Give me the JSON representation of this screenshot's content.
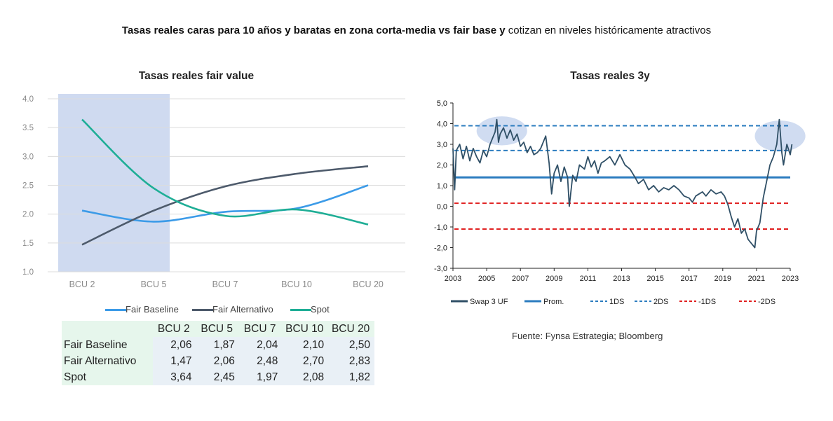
{
  "page": {
    "title_bold": "Tasas reales caras para 10 años y baratas en zona corta-media vs fair base y",
    "title_light": "cotizan en niveles históricamente atractivos",
    "source": "Fuente: Fynsa Estrategia; Bloomberg"
  },
  "chart_data": [
    {
      "type": "line",
      "title": "Tasas reales fair value",
      "categories": [
        "BCU 2",
        "BCU 5",
        "BCU 7",
        "BCU 10",
        "BCU 20"
      ],
      "ylim": [
        1.0,
        4.0
      ],
      "yticks": [
        "1.0",
        "1.5",
        "2.0",
        "2.5",
        "3.0",
        "3.5",
        "4.0"
      ],
      "grid": true,
      "highlight_region": [
        "BCU 2",
        "BCU 5"
      ],
      "legend_position": "bottom",
      "series": [
        {
          "name": "Fair Baseline",
          "color": "#3c9be8",
          "values": [
            2.06,
            1.87,
            2.04,
            2.1,
            2.5
          ]
        },
        {
          "name": "Fair Alternativo",
          "color": "#4d5a6b",
          "values": [
            1.47,
            2.06,
            2.48,
            2.7,
            2.83
          ]
        },
        {
          "name": "Spot",
          "color": "#1fae96",
          "values": [
            3.64,
            2.45,
            1.97,
            2.08,
            1.82
          ]
        }
      ],
      "table": {
        "headers": [
          "BCU 2",
          "BCU 5",
          "BCU 7",
          "BCU 10",
          "BCU 20"
        ],
        "rows": [
          {
            "label": "Fair Baseline",
            "values": [
              "2,06",
              "1,87",
              "2,04",
              "2,10",
              "2,50"
            ]
          },
          {
            "label": "Fair Alternativo",
            "values": [
              "1,47",
              "2,06",
              "2,48",
              "2,70",
              "2,83"
            ]
          },
          {
            "label": "Spot",
            "values": [
              "3,64",
              "2,45",
              "1,97",
              "2,08",
              "1,82"
            ]
          }
        ]
      }
    },
    {
      "type": "line",
      "title": "Tasas reales 3y",
      "xlim": [
        2003,
        2023
      ],
      "xticks": [
        "2003",
        "2005",
        "2007",
        "2009",
        "2011",
        "2013",
        "2015",
        "2017",
        "2019",
        "2021",
        "2023"
      ],
      "ylim": [
        -3.0,
        5.0
      ],
      "yticks": [
        "-3,0",
        "-2,0",
        "-1,0",
        "0,0",
        "1,0",
        "2,0",
        "3,0",
        "4,0",
        "5,0"
      ],
      "legend_position": "bottom",
      "series": [
        {
          "name": "Swap 3 UF",
          "color": "#2f4f66",
          "points": [
            [
              2003.0,
              2.8
            ],
            [
              2003.1,
              0.8
            ],
            [
              2003.2,
              2.7
            ],
            [
              2003.4,
              3.0
            ],
            [
              2003.6,
              2.3
            ],
            [
              2003.8,
              2.9
            ],
            [
              2004.0,
              2.2
            ],
            [
              2004.2,
              2.8
            ],
            [
              2004.4,
              2.4
            ],
            [
              2004.6,
              2.1
            ],
            [
              2004.8,
              2.7
            ],
            [
              2005.0,
              2.4
            ],
            [
              2005.2,
              3.0
            ],
            [
              2005.4,
              3.4
            ],
            [
              2005.5,
              3.6
            ],
            [
              2005.6,
              4.2
            ],
            [
              2005.7,
              3.1
            ],
            [
              2005.8,
              3.5
            ],
            [
              2006.0,
              3.8
            ],
            [
              2006.2,
              3.3
            ],
            [
              2006.4,
              3.7
            ],
            [
              2006.6,
              3.2
            ],
            [
              2006.8,
              3.5
            ],
            [
              2007.0,
              2.9
            ],
            [
              2007.2,
              3.1
            ],
            [
              2007.4,
              2.6
            ],
            [
              2007.6,
              2.9
            ],
            [
              2007.8,
              2.5
            ],
            [
              2008.0,
              2.6
            ],
            [
              2008.2,
              2.8
            ],
            [
              2008.5,
              3.4
            ],
            [
              2008.7,
              2.1
            ],
            [
              2008.85,
              0.6
            ],
            [
              2009.0,
              1.6
            ],
            [
              2009.2,
              2.0
            ],
            [
              2009.4,
              1.2
            ],
            [
              2009.6,
              1.9
            ],
            [
              2009.8,
              1.4
            ],
            [
              2009.9,
              0.0
            ],
            [
              2010.1,
              1.5
            ],
            [
              2010.3,
              1.2
            ],
            [
              2010.5,
              2.0
            ],
            [
              2010.8,
              1.8
            ],
            [
              2011.0,
              2.4
            ],
            [
              2011.2,
              1.9
            ],
            [
              2011.4,
              2.2
            ],
            [
              2011.6,
              1.6
            ],
            [
              2011.8,
              2.1
            ],
            [
              2012.0,
              2.2
            ],
            [
              2012.3,
              2.4
            ],
            [
              2012.6,
              2.0
            ],
            [
              2012.9,
              2.5
            ],
            [
              2013.2,
              2.0
            ],
            [
              2013.5,
              1.8
            ],
            [
              2013.8,
              1.4
            ],
            [
              2014.0,
              1.1
            ],
            [
              2014.3,
              1.3
            ],
            [
              2014.6,
              0.8
            ],
            [
              2014.9,
              1.0
            ],
            [
              2015.2,
              0.7
            ],
            [
              2015.5,
              0.9
            ],
            [
              2015.8,
              0.8
            ],
            [
              2016.1,
              1.0
            ],
            [
              2016.4,
              0.8
            ],
            [
              2016.7,
              0.5
            ],
            [
              2017.0,
              0.4
            ],
            [
              2017.2,
              0.2
            ],
            [
              2017.4,
              0.5
            ],
            [
              2017.6,
              0.6
            ],
            [
              2017.8,
              0.7
            ],
            [
              2018.0,
              0.5
            ],
            [
              2018.3,
              0.8
            ],
            [
              2018.6,
              0.6
            ],
            [
              2018.9,
              0.7
            ],
            [
              2019.1,
              0.5
            ],
            [
              2019.3,
              0.1
            ],
            [
              2019.5,
              -0.5
            ],
            [
              2019.7,
              -1.0
            ],
            [
              2019.9,
              -0.6
            ],
            [
              2020.1,
              -1.3
            ],
            [
              2020.3,
              -1.1
            ],
            [
              2020.5,
              -1.6
            ],
            [
              2020.7,
              -1.8
            ],
            [
              2020.9,
              -2.0
            ],
            [
              2021.0,
              -1.2
            ],
            [
              2021.2,
              -0.8
            ],
            [
              2021.4,
              0.4
            ],
            [
              2021.6,
              1.2
            ],
            [
              2021.8,
              2.0
            ],
            [
              2022.0,
              2.4
            ],
            [
              2022.2,
              3.0
            ],
            [
              2022.35,
              4.2
            ],
            [
              2022.5,
              2.6
            ],
            [
              2022.6,
              2.0
            ],
            [
              2022.8,
              3.0
            ],
            [
              2023.0,
              2.5
            ],
            [
              2023.1,
              3.0
            ]
          ]
        },
        {
          "name": "Prom.",
          "color": "#2b7cbf",
          "style": "solid",
          "value": 1.4
        },
        {
          "name": "1DS",
          "color": "#2b7cbf",
          "style": "dashed",
          "value": 2.7
        },
        {
          "name": "2DS",
          "color": "#2b7cbf",
          "style": "dashed",
          "value": 3.9
        },
        {
          "name": "-1DS",
          "color": "#e02020",
          "style": "dashed",
          "value": 0.15
        },
        {
          "name": "-2DS",
          "color": "#e02020",
          "style": "dashed",
          "value": -1.1
        }
      ],
      "highlights": [
        {
          "x_center": 2005.9,
          "y_center": 3.65,
          "x_halfwidth": 1.5,
          "y_halfwidth": 0.7
        },
        {
          "x_center": 2022.4,
          "y_center": 3.4,
          "x_halfwidth": 1.5,
          "y_halfwidth": 0.75
        }
      ]
    }
  ]
}
